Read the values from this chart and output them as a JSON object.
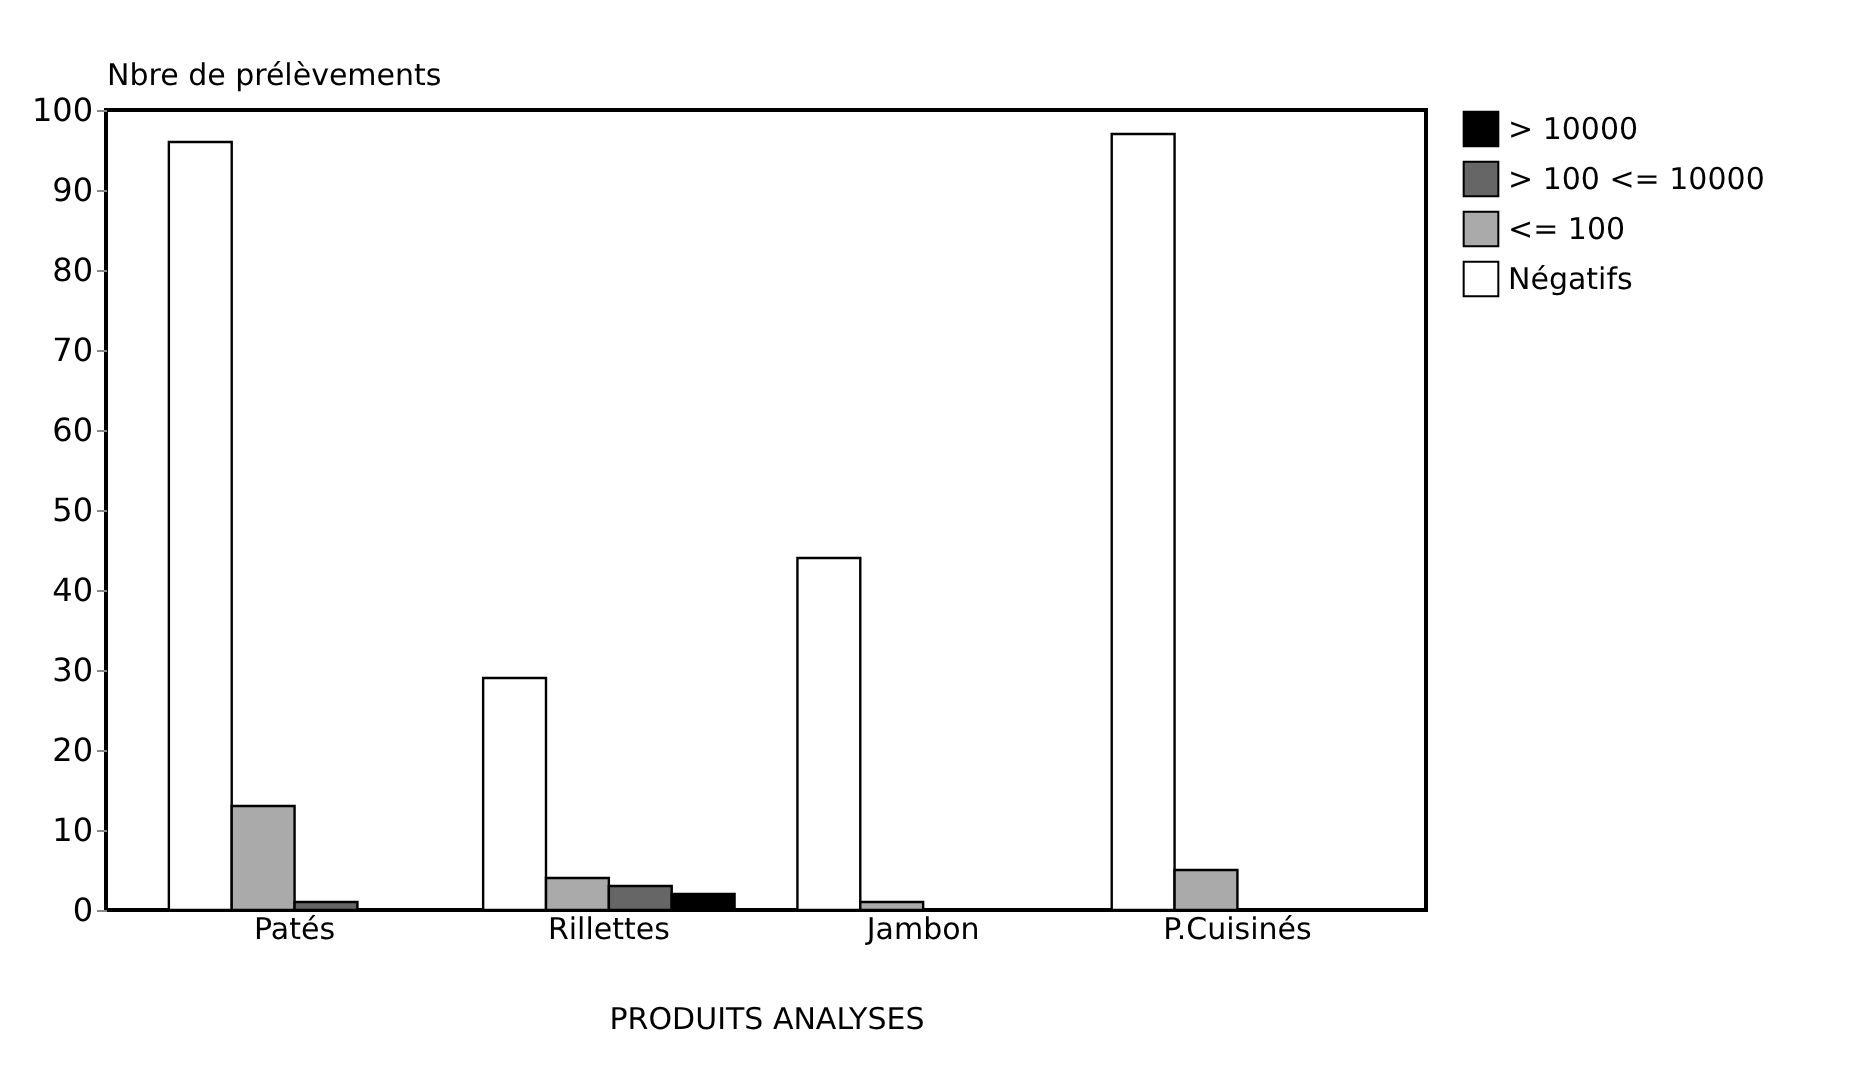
{
  "chart_data": {
    "type": "bar",
    "ylabel": "Nbre de prélèvements",
    "xlabel": "PRODUITS ANALYSES",
    "categories": [
      "Patés",
      "Rillettes",
      "Jambon",
      "P.Cuisinés"
    ],
    "series": [
      {
        "name": "Négatifs",
        "color": "#ffffff",
        "values": [
          96,
          29,
          44,
          97
        ]
      },
      {
        "name": "<= 100",
        "color": "#aaaaaa",
        "values": [
          13,
          4,
          1,
          5
        ]
      },
      {
        "name": "> 100 <= 10000",
        "color": "#666666",
        "values": [
          1,
          3,
          0,
          0
        ]
      },
      {
        "name": "> 10000",
        "color": "#000000",
        "values": [
          0,
          2,
          0,
          0
        ]
      }
    ],
    "ylim": [
      0,
      100
    ],
    "yticks": [
      0,
      10,
      20,
      30,
      40,
      50,
      60,
      70,
      80,
      90,
      100
    ],
    "grid": false,
    "legend": "right"
  }
}
